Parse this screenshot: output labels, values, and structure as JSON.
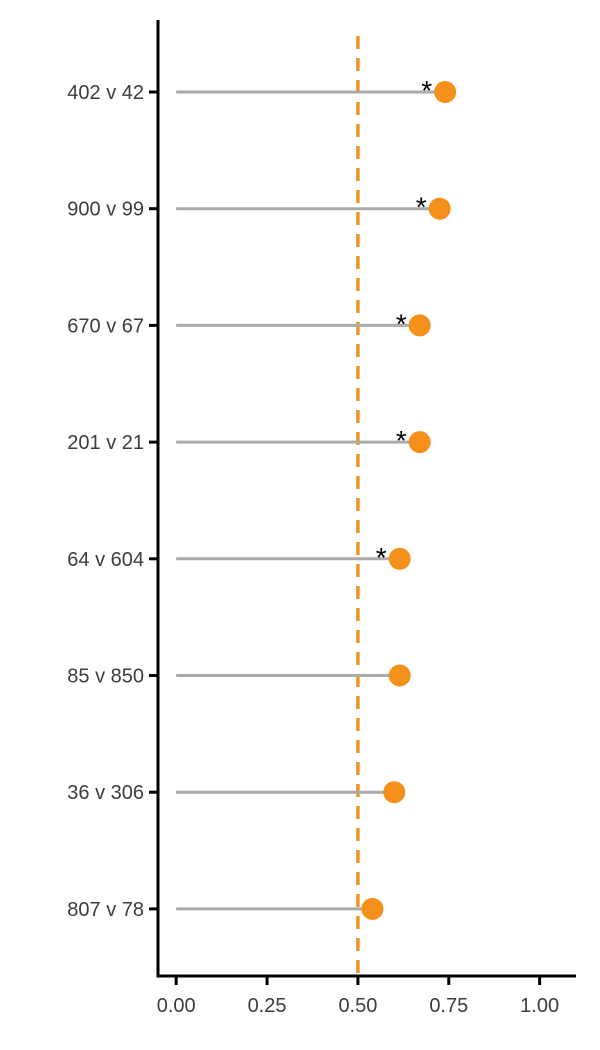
{
  "chart_data": {
    "type": "lollipop",
    "title": "",
    "xlabel": "",
    "ylabel": "",
    "xlim": [
      -0.05,
      1.1
    ],
    "x_ticks": [
      0.0,
      0.25,
      0.5,
      0.75,
      1.0
    ],
    "x_tick_labels": [
      "0.00",
      "0.25",
      "0.50",
      "0.75",
      "1.00"
    ],
    "reference_line": {
      "x": 0.5,
      "style": "dashed"
    },
    "categories": [
      "402 v 42",
      "900 v 99",
      "670 v 67",
      "201 v 21",
      "64 v 604",
      "85 v 850",
      "36 v 306",
      "807 v 78"
    ],
    "values": [
      0.74,
      0.725,
      0.67,
      0.67,
      0.615,
      0.615,
      0.6,
      0.54
    ],
    "significant": [
      true,
      true,
      true,
      true,
      true,
      false,
      false,
      false
    ],
    "significance_marker": "*",
    "grid": false,
    "legend": "none",
    "colors": {
      "point": "#f5901a",
      "stem": "#aaaaaa",
      "reference_line": "#f0941f",
      "axis": "#000000",
      "tick_label": "#3d3d3d"
    }
  }
}
